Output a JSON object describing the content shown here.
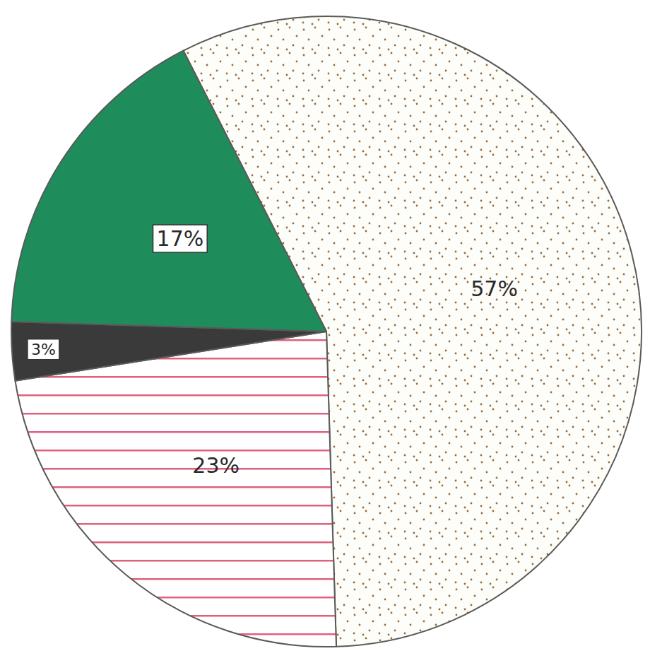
{
  "chart_data": {
    "type": "pie",
    "values": [
      57,
      23,
      3,
      17
    ],
    "value_labels": [
      "57%",
      "23%",
      "3%",
      "17%"
    ],
    "colors": [
      "#9a6a3a",
      "#e0607e",
      "#3a3a3a",
      "#1f8c5c"
    ],
    "data_labels": true
  }
}
